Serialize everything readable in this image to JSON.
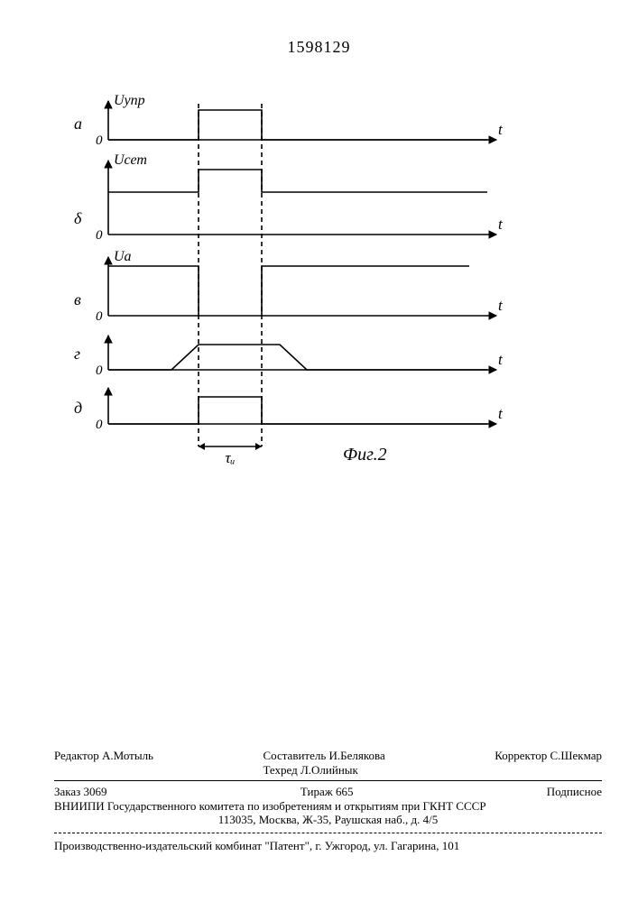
{
  "docNumber": "1598129",
  "figure": {
    "caption": "Фиг.2",
    "tauLabel": "τᵤ",
    "axisColor": "#000000",
    "dashColor": "#000000",
    "lineWidth": 1.6,
    "arrowSize": 8,
    "chart": {
      "xStart": 40,
      "xEnd": 470,
      "pulseX1": 140,
      "pulseX2": 210,
      "trapX0": 110,
      "trapX1": 140,
      "trapX2": 230,
      "trapX3": 260
    },
    "rows": [
      {
        "id": "a",
        "label": "а",
        "yLabel": "Uупр",
        "zero": "0",
        "t": "t",
        "baseline": 55,
        "pulseTop": 22,
        "hasYArrow": true,
        "type": "pulse"
      },
      {
        "id": "b",
        "label": "δ",
        "yLabel": "Uсет",
        "zero": "0",
        "t": "t",
        "baseline": 160,
        "mid": 113,
        "pulseTop": 88,
        "hasYArrow": true,
        "type": "step-pulse"
      },
      {
        "id": "v",
        "label": "в",
        "yLabel": "Uа",
        "zero": "0",
        "t": "t",
        "baseline": 250,
        "level": 195,
        "hasYArrow": true,
        "type": "notch"
      },
      {
        "id": "g",
        "label": "г",
        "yLabel": "",
        "zero": "0",
        "t": "t",
        "baseline": 310,
        "pulseTop": 282,
        "hasYArrow": true,
        "type": "trapezoid"
      },
      {
        "id": "d",
        "label": "д",
        "yLabel": "",
        "zero": "0",
        "t": "t",
        "baseline": 370,
        "pulseTop": 340,
        "hasYArrow": true,
        "type": "pulse"
      }
    ]
  },
  "credits": {
    "editor": "Редактор А.Мотыль",
    "compiler": "Составитель И.Белякова",
    "techred": "Техред Л.Олийнык",
    "corrector": "Корректор С.Шекмар",
    "order": "Заказ 3069",
    "tirazh": "Тираж 665",
    "subscription": "Подписное",
    "institute": "ВНИИПИ Государственного комитета по изобретениям и открытиям при ГКНТ СССР",
    "address": "113035, Москва, Ж-35, Раушская наб., д. 4/5",
    "bottom": "Производственно-издательский комбинат \"Патент\", г. Ужгород, ул. Гагарина, 101"
  }
}
